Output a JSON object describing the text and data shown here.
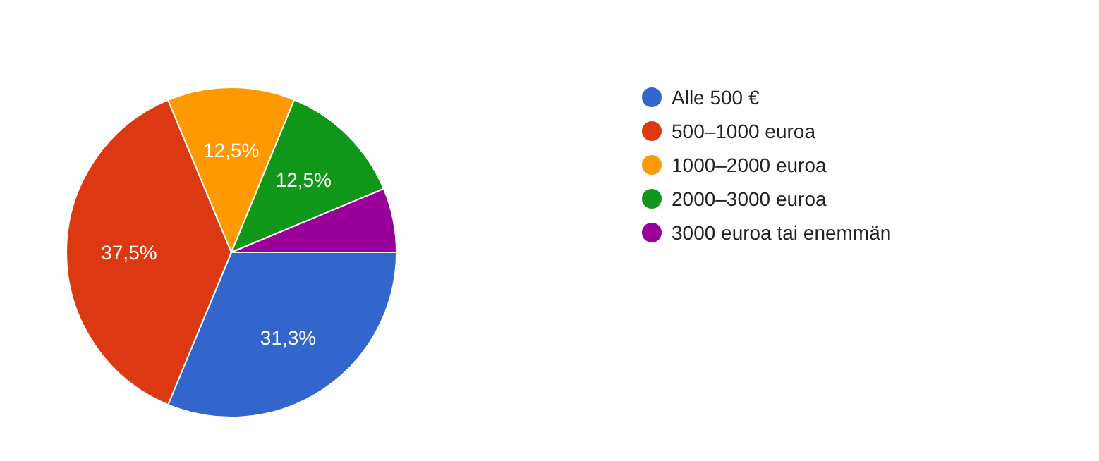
{
  "chart_data": {
    "type": "pie",
    "categories": [
      "Alle 500 €",
      "500–1000 euroa",
      "1000–2000 euroa",
      "2000–3000 euroa",
      "3000 euroa tai enemmän"
    ],
    "values": [
      31.3,
      37.5,
      12.5,
      12.5,
      6.3
    ],
    "colors": [
      "#3366cc",
      "#dc3912",
      "#ff9900",
      "#109618",
      "#990099"
    ],
    "value_labels": [
      "31,3%",
      "37,5%",
      "12,5%",
      "12,5%",
      null
    ],
    "legend": "right"
  }
}
